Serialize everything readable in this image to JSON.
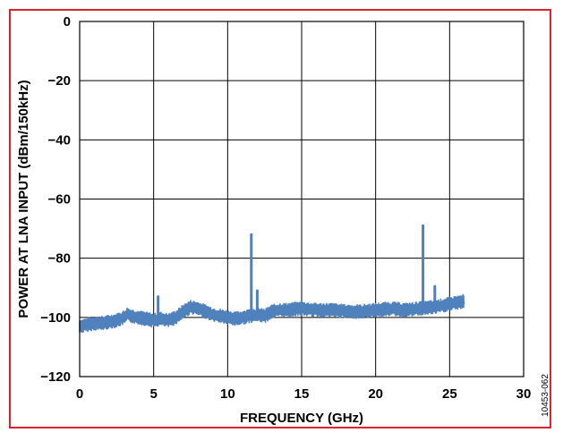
{
  "figure_id": "10453-062",
  "chart_data": {
    "type": "line",
    "xlabel": "FREQUENCY (GHz)",
    "ylabel": "POWER AT LNA INPUT (dBm/150kHz)",
    "xlim": [
      0,
      30
    ],
    "ylim": [
      -120,
      0
    ],
    "x_ticks": [
      0,
      5,
      10,
      15,
      20,
      25,
      30
    ],
    "y_ticks": [
      0,
      -20,
      -40,
      -60,
      -80,
      -100,
      -120
    ],
    "grid": true,
    "series_color": "#4f81bd",
    "series": [
      {
        "x": [
          0,
          0.5,
          1.0,
          1.5,
          2.0,
          2.5,
          3.0,
          3.2,
          3.5,
          4.0,
          4.5,
          5.0,
          5.5,
          6.0,
          6.5,
          7.0,
          7.5,
          8.0,
          8.5,
          9.0,
          9.5,
          10.0,
          10.5,
          11.0,
          11.5,
          12.0,
          12.5,
          13.0,
          13.5,
          14.0,
          15.0,
          16.0,
          17.0,
          18.0,
          19.0,
          20.0,
          21.0,
          22.0,
          23.0,
          24.0,
          25.0,
          25.5,
          26.0
        ],
        "y": [
          -103,
          -102.5,
          -102,
          -102,
          -101.5,
          -101,
          -100,
          -99,
          -99.5,
          -100,
          -100.5,
          -101,
          -100.5,
          -101,
          -100,
          -98,
          -96.5,
          -97,
          -98,
          -99,
          -99.5,
          -100,
          -100.5,
          -100,
          -99.5,
          -99,
          -99.5,
          -98,
          -97.5,
          -97.5,
          -97,
          -97.5,
          -97.5,
          -98,
          -98,
          -97.5,
          -97,
          -97.5,
          -97,
          -96.5,
          -95.5,
          -95,
          -94.5
        ],
        "band_dB": 2.5
      }
    ],
    "spurs": [
      {
        "x": 5.3,
        "y": -93
      },
      {
        "x": 11.6,
        "y": -72
      },
      {
        "x": 12.0,
        "y": -91
      },
      {
        "x": 23.2,
        "y": -69
      },
      {
        "x": 24.0,
        "y": -89.5
      }
    ]
  }
}
